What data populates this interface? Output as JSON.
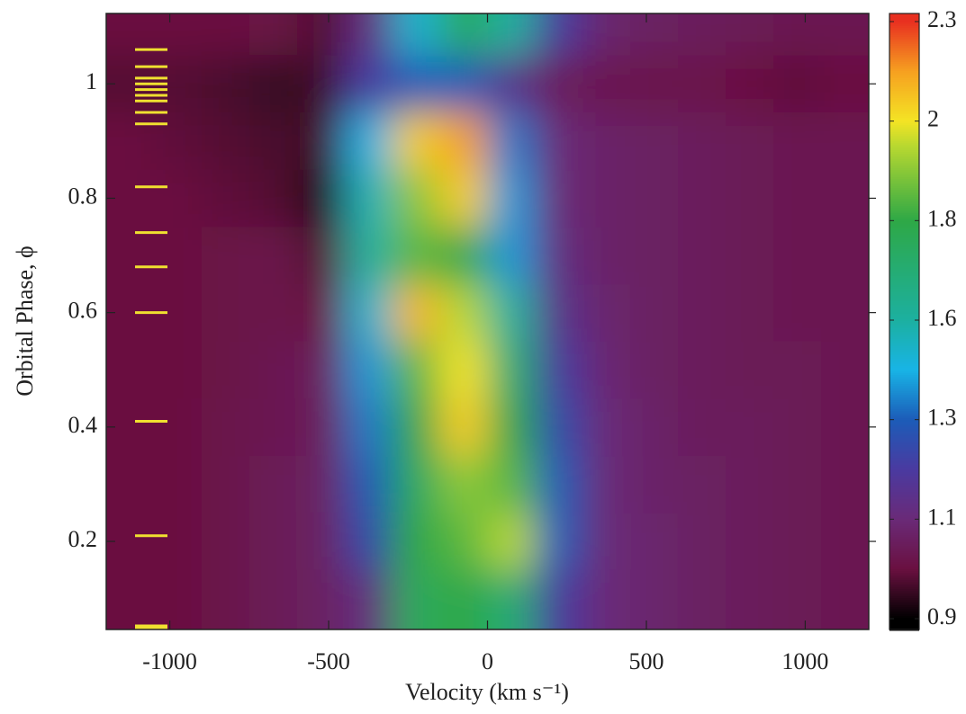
{
  "chart_data": {
    "type": "heatmap",
    "xlabel": "Velocity (km s⁻¹)",
    "ylabel": "Orbital Phase, ϕ",
    "xlim": [
      -1200,
      1200
    ],
    "xticks": [
      -1000,
      -500,
      0,
      500,
      1000
    ],
    "ylim": [
      0.046,
      1.123
    ],
    "yticks": [
      0.2,
      0.4,
      0.6,
      0.8,
      1.0
    ],
    "x": [
      -1125,
      -975,
      -825,
      -675,
      -525,
      -375,
      -225,
      -75,
      75,
      225,
      375,
      525,
      675,
      825,
      975,
      1125
    ],
    "y": [
      0.1,
      0.2,
      0.3,
      0.4,
      0.5,
      0.6,
      0.7,
      0.8,
      0.9,
      1.0,
      1.1
    ],
    "z": [
      [
        1.0,
        1.0,
        1.02,
        1.04,
        1.06,
        1.12,
        1.75,
        1.8,
        1.7,
        1.2,
        1.1,
        1.08,
        1.06,
        1.05,
        1.04,
        1.03
      ],
      [
        1.0,
        1.0,
        1.02,
        1.04,
        1.06,
        1.25,
        1.8,
        1.85,
        1.95,
        1.3,
        1.1,
        1.08,
        1.06,
        1.05,
        1.04,
        1.03
      ],
      [
        1.0,
        1.0,
        1.02,
        1.04,
        1.06,
        1.3,
        1.75,
        1.9,
        1.85,
        1.3,
        1.1,
        1.07,
        1.06,
        1.05,
        1.04,
        1.03
      ],
      [
        1.0,
        1.0,
        1.02,
        1.03,
        1.05,
        1.35,
        1.8,
        2.05,
        1.8,
        1.25,
        1.1,
        1.07,
        1.05,
        1.05,
        1.04,
        1.03
      ],
      [
        1.0,
        1.0,
        1.01,
        1.03,
        1.05,
        1.4,
        1.85,
        2.0,
        1.7,
        1.2,
        1.09,
        1.06,
        1.05,
        1.04,
        1.04,
        1.03
      ],
      [
        1.0,
        1.0,
        1.01,
        1.02,
        1.0,
        1.5,
        2.1,
        1.95,
        1.6,
        1.15,
        1.08,
        1.06,
        1.05,
        1.04,
        1.03,
        1.03
      ],
      [
        1.0,
        1.0,
        1.01,
        1.02,
        0.98,
        1.6,
        1.85,
        1.8,
        1.4,
        1.12,
        1.07,
        1.06,
        1.05,
        1.04,
        1.03,
        1.03
      ],
      [
        1.0,
        1.0,
        0.99,
        0.98,
        0.93,
        1.55,
        1.9,
        2.05,
        1.4,
        1.1,
        1.07,
        1.06,
        1.05,
        1.04,
        1.03,
        1.03
      ],
      [
        1.0,
        0.99,
        0.98,
        0.97,
        0.96,
        1.45,
        2.05,
        2.15,
        1.35,
        1.1,
        1.07,
        1.06,
        1.05,
        1.04,
        1.03,
        1.03
      ],
      [
        0.98,
        0.98,
        0.97,
        0.95,
        0.96,
        1.2,
        1.3,
        1.3,
        1.15,
        1.05,
        1.03,
        1.02,
        1.02,
        1.0,
        0.99,
        1.0
      ],
      [
        1.0,
        1.0,
        1.0,
        1.01,
        0.98,
        1.12,
        1.5,
        1.75,
        1.6,
        1.2,
        1.08,
        1.06,
        1.05,
        1.04,
        1.03,
        1.03
      ]
    ],
    "observed_phases": [
      0.05,
      0.21,
      0.41,
      0.6,
      0.68,
      0.74,
      0.82,
      0.93,
      0.95,
      0.97,
      0.98,
      0.99,
      1.0,
      1.01,
      1.03,
      1.06
    ],
    "phase_marker_color": "#f0e030",
    "colorbar_ticks": [
      0.9,
      1.1,
      1.3,
      1.6,
      1.8,
      2.0,
      2.3
    ],
    "colormap": [
      {
        "value": 0.9,
        "color": "#000000"
      },
      {
        "value": 1.0,
        "color": "#6a1040"
      },
      {
        "value": 1.1,
        "color": "#6a2a78"
      },
      {
        "value": 1.2,
        "color": "#4a3aa0"
      },
      {
        "value": 1.3,
        "color": "#1c5cb8"
      },
      {
        "value": 1.45,
        "color": "#18b4e6"
      },
      {
        "value": 1.6,
        "color": "#1cb0a0"
      },
      {
        "value": 1.8,
        "color": "#2ea846"
      },
      {
        "value": 1.95,
        "color": "#b8d830"
      },
      {
        "value": 2.0,
        "color": "#f4e424"
      },
      {
        "value": 2.15,
        "color": "#f6a020"
      },
      {
        "value": 2.3,
        "color": "#e83020"
      }
    ]
  }
}
